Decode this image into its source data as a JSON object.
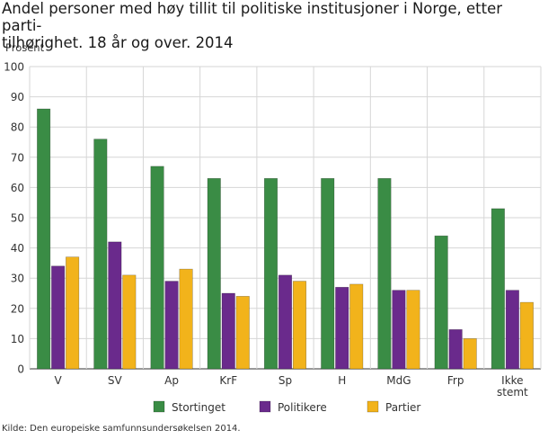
{
  "chart_data": {
    "type": "bar",
    "title": "Andel personer med høy tillit til politiske institusjoner i Norge, etter parti-tilhørighet. 18 år og over. 2014",
    "title_lines": [
      "Andel personer med høy tillit til politiske institusjoner i Norge, etter parti-",
      "tilhørighet. 18 år og over. 2014"
    ],
    "ylabel": "Prosent",
    "xlabel": "",
    "ylim": [
      0,
      100
    ],
    "yticks": [
      0,
      10,
      20,
      30,
      40,
      50,
      60,
      70,
      80,
      90,
      100
    ],
    "grid": true,
    "legend_position": "bottom",
    "categories": [
      "V",
      "SV",
      "Ap",
      "KrF",
      "Sp",
      "H",
      "MdG",
      "Frp",
      "Ikke stemt"
    ],
    "category_lines": [
      [
        "V"
      ],
      [
        "SV"
      ],
      [
        "Ap"
      ],
      [
        "KrF"
      ],
      [
        "Sp"
      ],
      [
        "H"
      ],
      [
        "MdG"
      ],
      [
        "Frp"
      ],
      [
        "Ikke",
        "stemt"
      ]
    ],
    "series": [
      {
        "name": "Stortinget",
        "color": "#3a8c45",
        "values": [
          86,
          76,
          67,
          63,
          63,
          63,
          63,
          44,
          53
        ]
      },
      {
        "name": "Politikere",
        "color": "#6a2a8c",
        "values": [
          34,
          42,
          29,
          25,
          31,
          27,
          26,
          13,
          26
        ]
      },
      {
        "name": "Partier",
        "color": "#f2b31b",
        "values": [
          37,
          31,
          33,
          24,
          29,
          28,
          26,
          10,
          22
        ]
      }
    ]
  },
  "source": "Kilde: Den europeiske samfunnsundersøkelsen 2014."
}
